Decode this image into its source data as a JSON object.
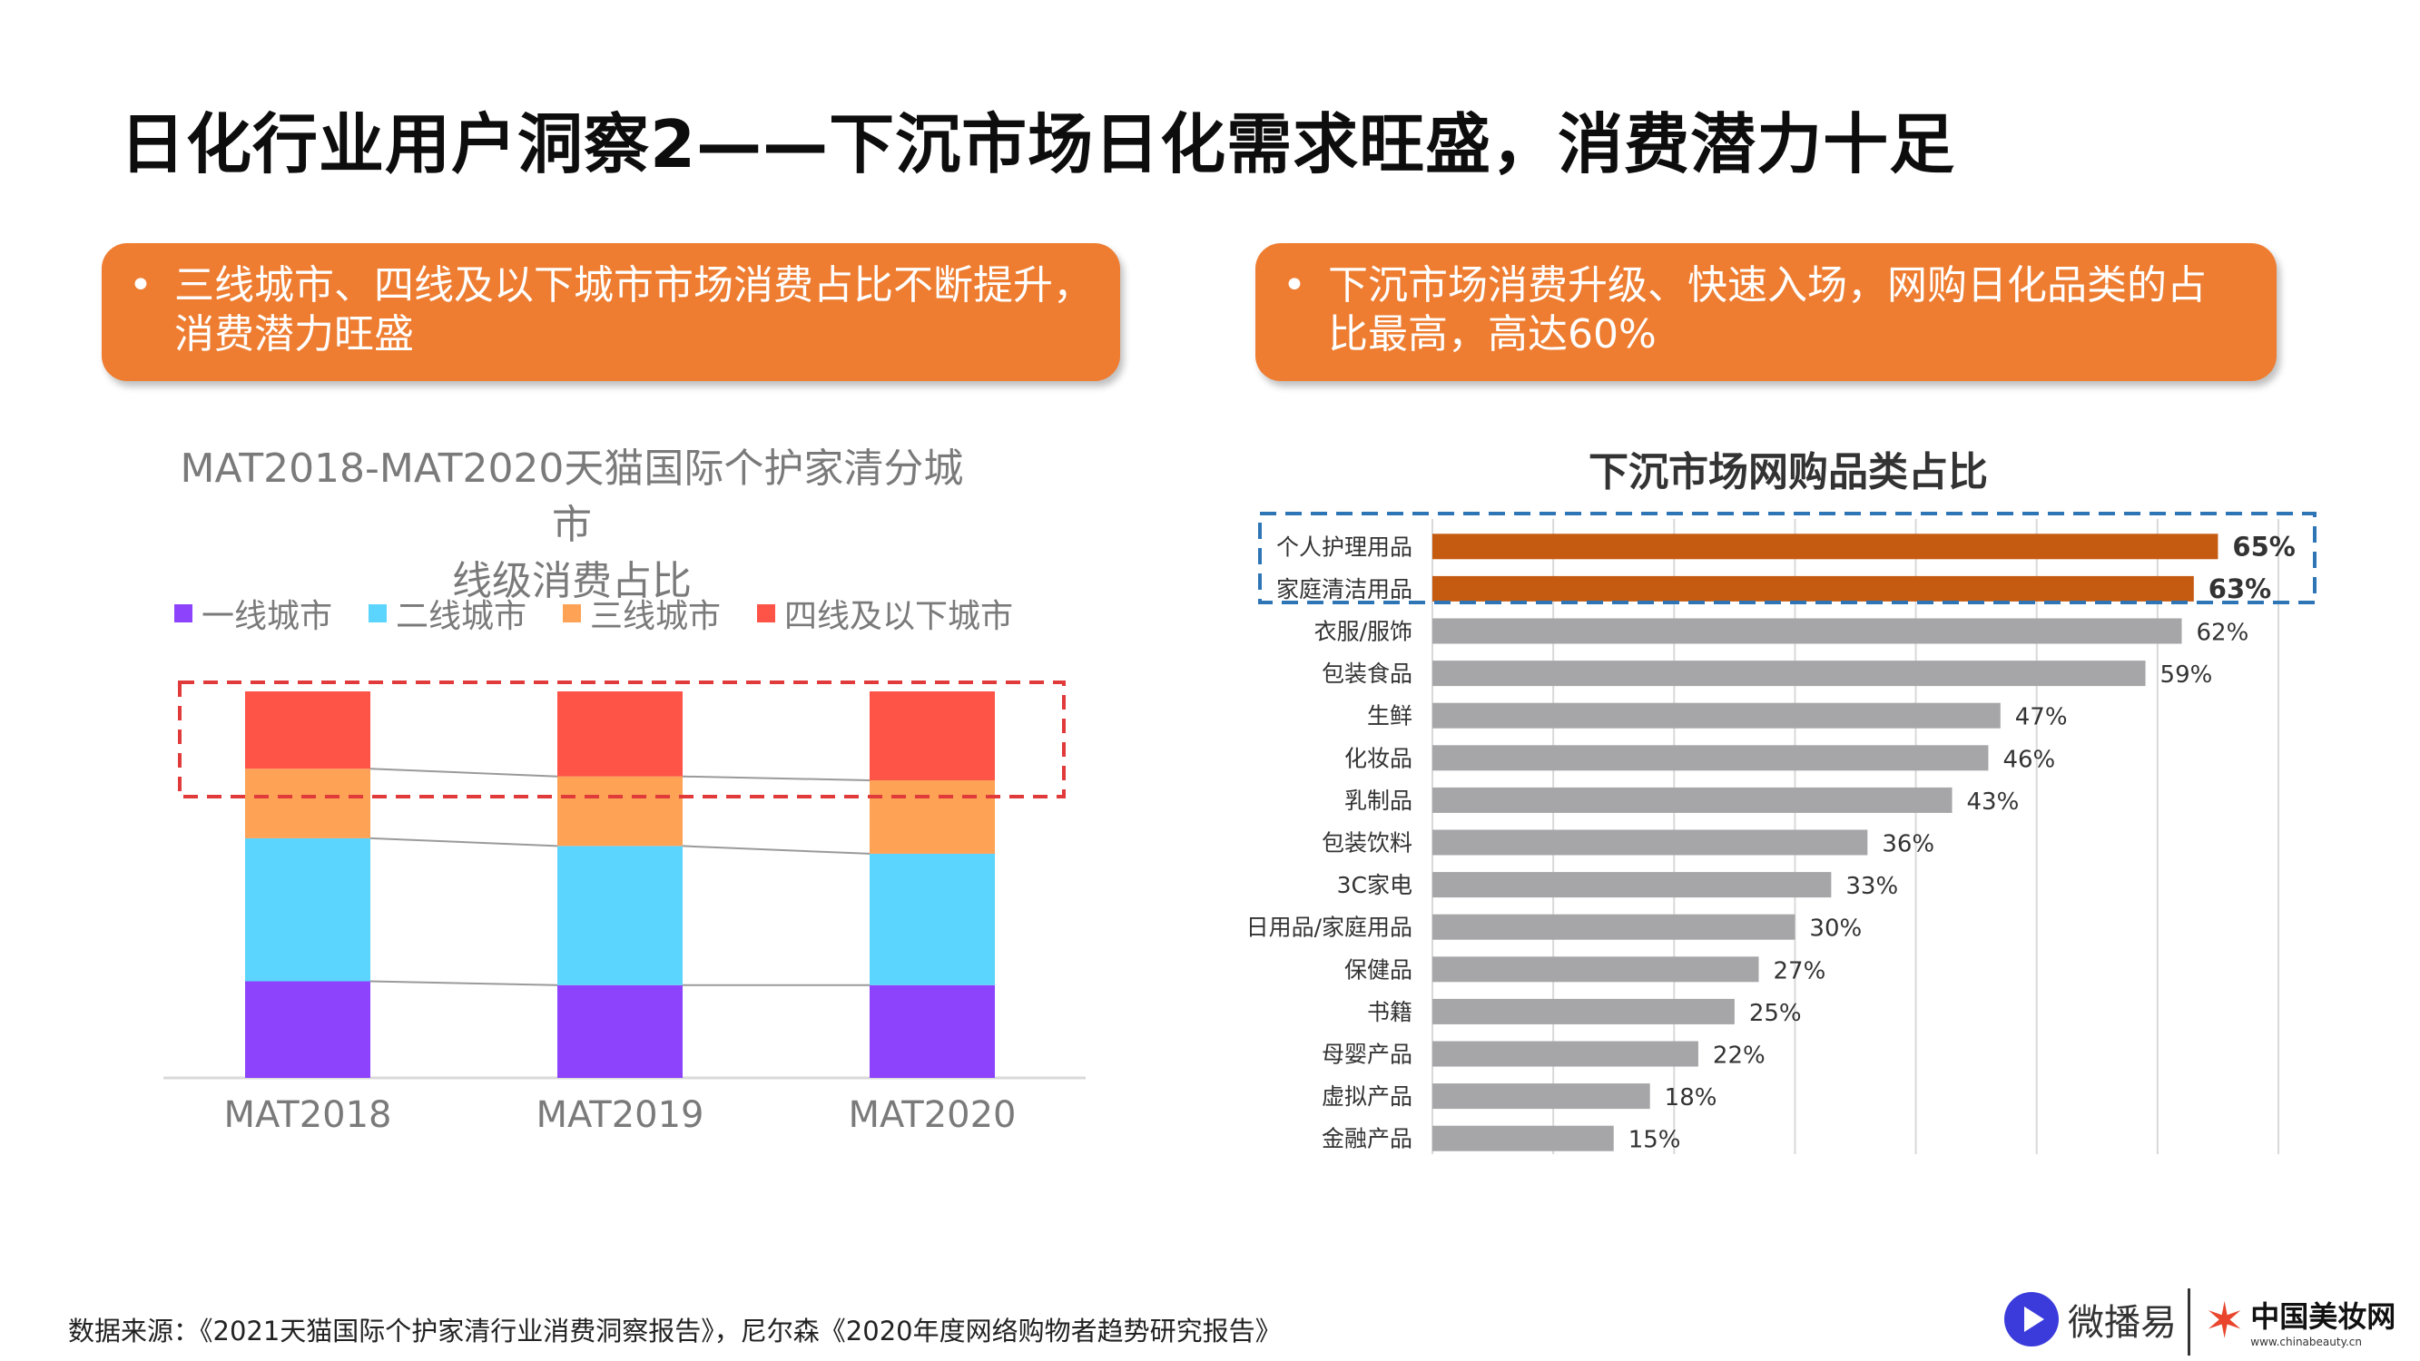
{
  "page": {
    "title": "日化行业用户洞察2——下沉市场日化需求旺盛，消费潜力十足",
    "callouts": [
      {
        "bullet": "•",
        "text_line1": "三线城市、四线及以下城市市场消费占比不断提升，",
        "text_line2": "消费潜力旺盛"
      },
      {
        "bullet": "•",
        "text_line1": "下沉市场消费升级、快速入场，网购日化品类的占",
        "text_line2": "比最高，高达60%"
      }
    ],
    "source": "数据来源：《2021天猫国际个护家清行业消费洞察报告》，尼尔森《2020年度网络购物者趋势研究报告》",
    "logos": {
      "left": "微播易",
      "right_main": "中国美妆网",
      "right_sub": "www.chinabeauty.cn"
    }
  },
  "chart_data": [
    {
      "type": "bar",
      "stacked": true,
      "title_line1": "MAT2018-MAT2020天猫国际个护家清分城市",
      "title_line2": "线级消费占比",
      "categories": [
        "MAT2018",
        "MAT2019",
        "MAT2020"
      ],
      "series": [
        {
          "name": "一线城市",
          "color": "#8d43fb",
          "values": [
            0.25,
            0.24,
            0.24
          ]
        },
        {
          "name": "二线城市",
          "color": "#5bd5fd",
          "values": [
            0.37,
            0.36,
            0.34
          ]
        },
        {
          "name": "三线城市",
          "color": "#fea256",
          "values": [
            0.18,
            0.18,
            0.19
          ]
        },
        {
          "name": "四线及以下城市",
          "color": "#fe5347",
          "values": [
            0.2,
            0.22,
            0.23
          ]
        }
      ],
      "ylim": [
        0,
        1
      ],
      "highlight": "top-segments-dashed-red-box"
    },
    {
      "type": "bar",
      "orientation": "horizontal",
      "title": "下沉市场网购品类占比",
      "categories": [
        "个人护理用品",
        "家庭清洁用品",
        "衣服/服饰",
        "包装食品",
        "生鲜",
        "化妆品",
        "乳制品",
        "包装饮料",
        "3C家电",
        "日用品/家庭用品",
        "保健品",
        "书籍",
        "母婴产品",
        "虚拟产品",
        "金融产品"
      ],
      "values": [
        65,
        63,
        62,
        59,
        47,
        46,
        43,
        36,
        33,
        30,
        27,
        25,
        22,
        18,
        15
      ],
      "labels": [
        "65%",
        "63%",
        "62%",
        "59%",
        "47%",
        "46%",
        "43%",
        "36%",
        "33%",
        "30%",
        "27%",
        "25%",
        "22%",
        "18%",
        "15%"
      ],
      "highlight_count": 2,
      "highlight_color": "#c55a11",
      "bar_color": "#a6a5a8",
      "xlim": [
        0,
        70
      ],
      "grid": true
    }
  ]
}
